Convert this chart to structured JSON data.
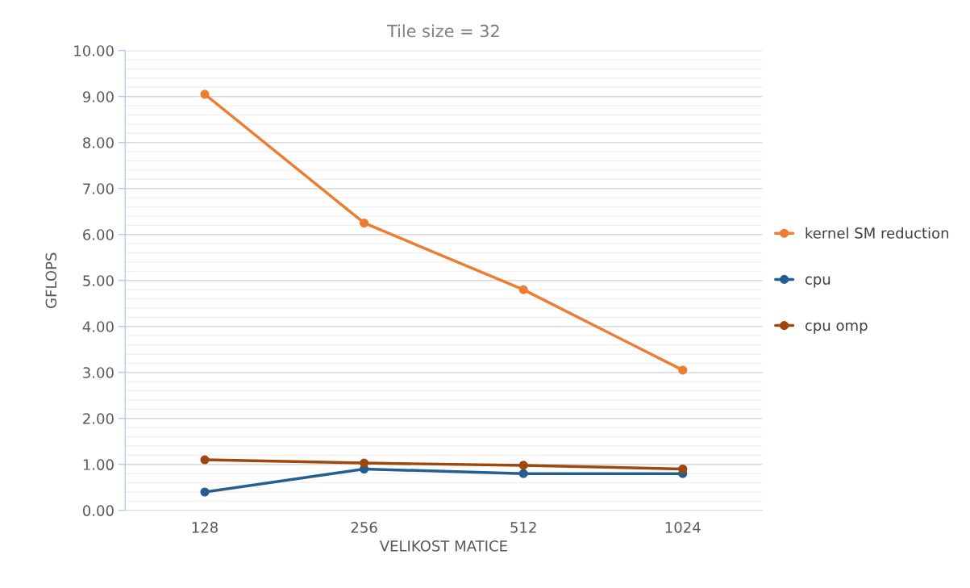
{
  "chart_data": {
    "type": "line",
    "title": "Tile size = 32",
    "xlabel": "VELIKOST MATICE",
    "ylabel": "GFLOPS",
    "categories": [
      "128",
      "256",
      "512",
      "1024"
    ],
    "series": [
      {
        "name": "kernel SM reduction",
        "color": "#ed7d31",
        "values": [
          9.05,
          6.25,
          4.8,
          3.05
        ]
      },
      {
        "name": "cpu",
        "color": "#255e91",
        "values": [
          0.4,
          0.9,
          0.8,
          0.8
        ]
      },
      {
        "name": "cpu omp",
        "color": "#9e480e",
        "values": [
          1.1,
          1.03,
          0.98,
          0.9
        ]
      }
    ],
    "ylim": [
      0,
      10
    ],
    "yticks": [
      {
        "value": 0,
        "label": "0.00"
      },
      {
        "value": 1,
        "label": "1.00"
      },
      {
        "value": 2,
        "label": "2.00"
      },
      {
        "value": 3,
        "label": "3.00"
      },
      {
        "value": 4,
        "label": "4.00"
      },
      {
        "value": 5,
        "label": "5.00"
      },
      {
        "value": 6,
        "label": "6.00"
      },
      {
        "value": 7,
        "label": "7.00"
      },
      {
        "value": 8,
        "label": "8.00"
      },
      {
        "value": 9,
        "label": "9.00"
      },
      {
        "value": 10,
        "label": "10.00"
      }
    ],
    "grid": "y",
    "legend": "right",
    "marker": "circle",
    "line_style": "solid"
  }
}
